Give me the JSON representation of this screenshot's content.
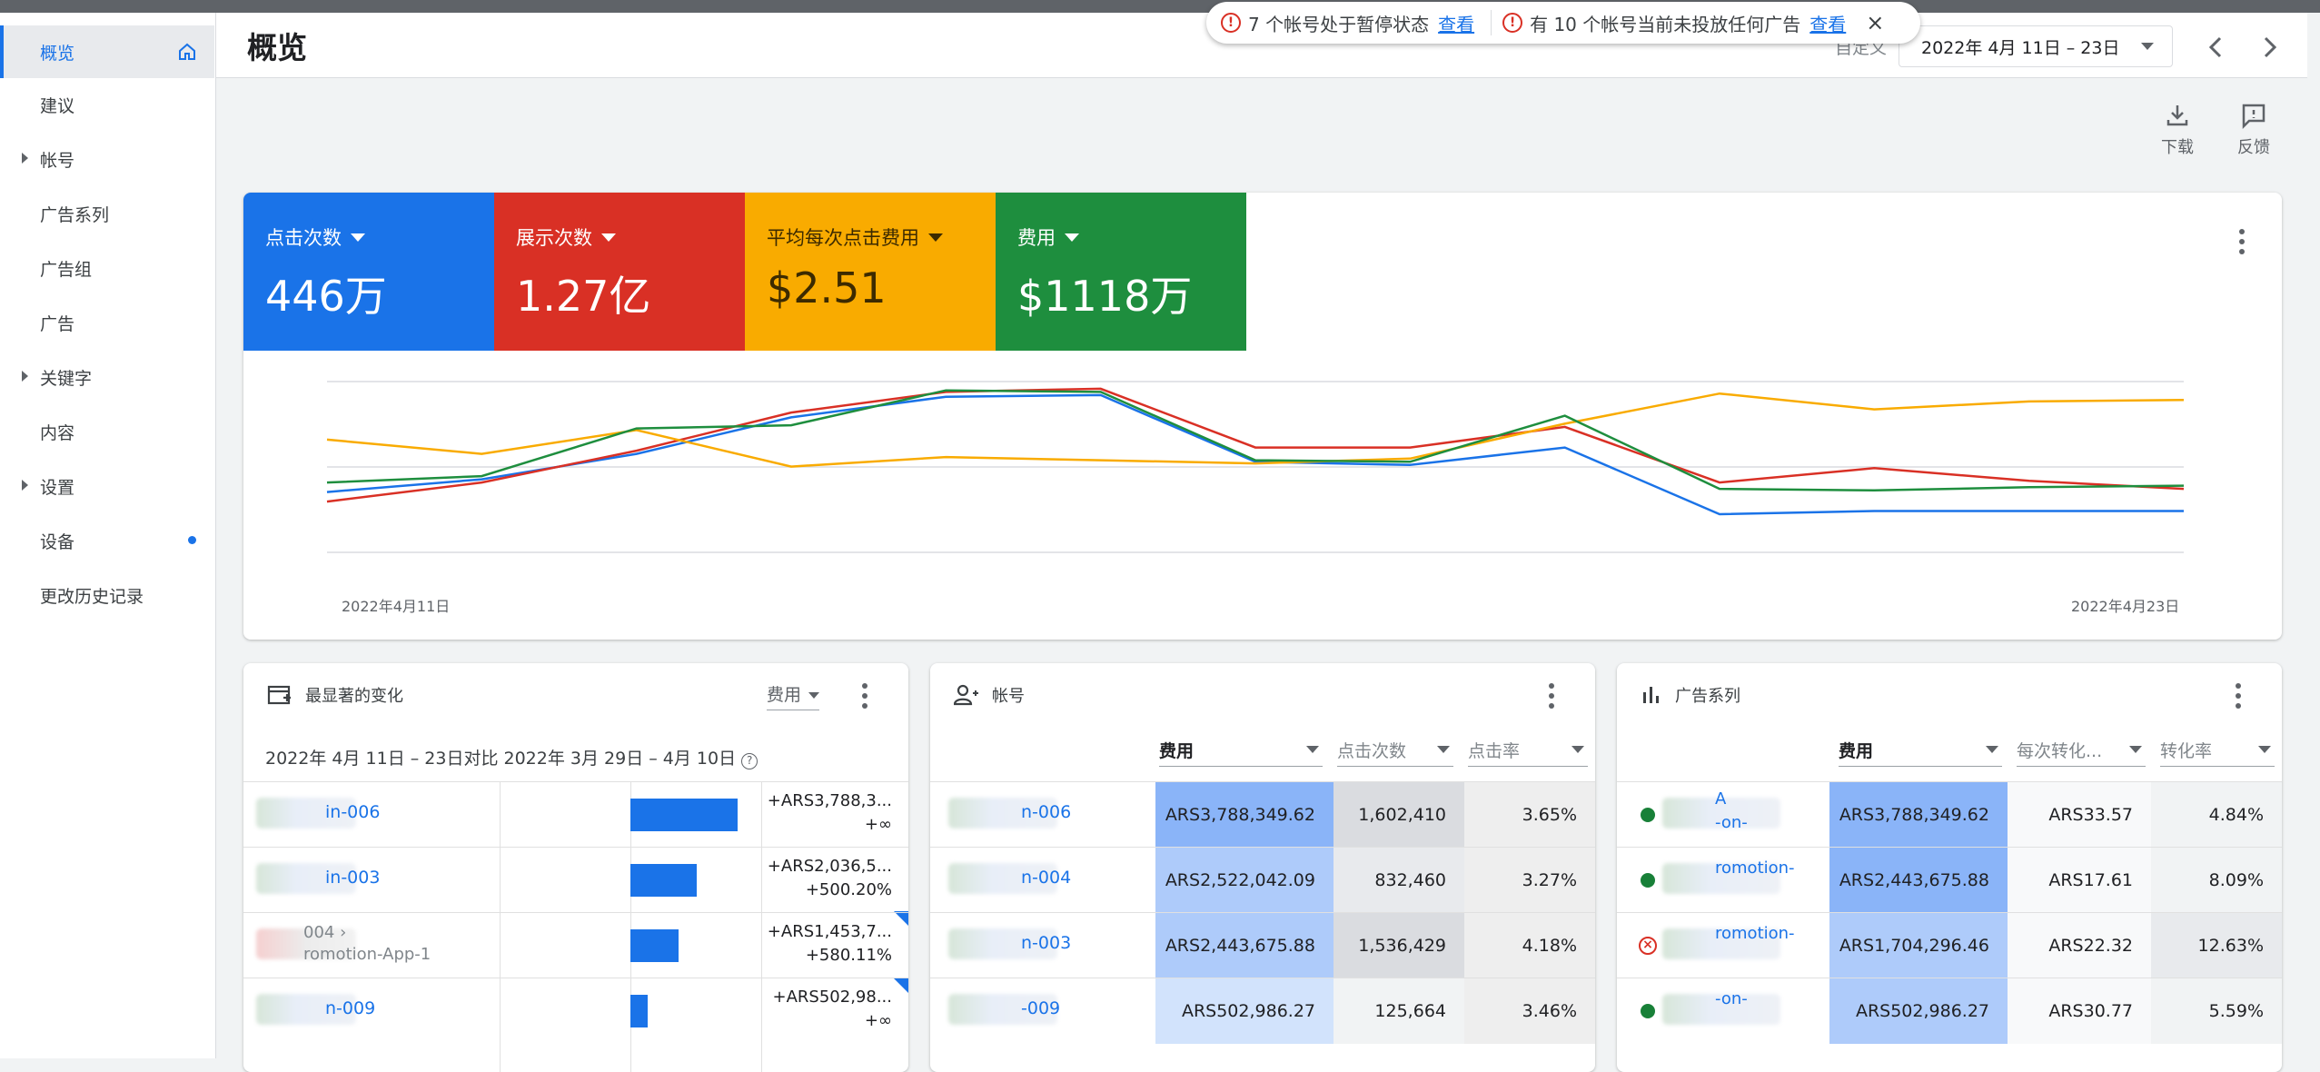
{
  "sidebar": {
    "items": [
      {
        "label": "概览",
        "active": true,
        "arrow": false,
        "home": true
      },
      {
        "label": "建议"
      },
      {
        "label": "帐号",
        "arrow": true
      },
      {
        "label": "广告系列"
      },
      {
        "label": "广告组"
      },
      {
        "label": "广告"
      },
      {
        "label": "关键字",
        "arrow": true
      },
      {
        "label": "内容"
      },
      {
        "label": "设置",
        "arrow": true
      },
      {
        "label": "设备",
        "dot": true
      },
      {
        "label": "更改历史记录"
      }
    ]
  },
  "header": {
    "title": "概览",
    "alerts": {
      "paused": "7 个帐号处于暂停状态",
      "paused_link": "查看",
      "no_ads": "有 10 个帐号当前未投放任何广告",
      "no_ads_link": "查看",
      "close": "×"
    },
    "date_label": "自定义",
    "date_range": "2022年 4月 11日 – 23日"
  },
  "toolbar": {
    "download": "下载",
    "feedback": "反馈"
  },
  "metrics": [
    {
      "label": "点击次数",
      "value": "446万",
      "color": "#1a73e8"
    },
    {
      "label": "展示次数",
      "value": "1.27亿",
      "color": "#d93025"
    },
    {
      "label": "平均每次点击费用",
      "value": "$2.51",
      "color": "#f9ab00"
    },
    {
      "label": "费用",
      "value": "$1118万",
      "color": "#1e8e3e"
    }
  ],
  "chart_data": {
    "type": "line",
    "x_start_label": "2022年4月11日",
    "x_end_label": "2022年4月23日",
    "series": [
      {
        "color": "#1a73e8",
        "values": [
          0.38,
          0.46,
          0.62,
          0.85,
          0.98,
          0.99,
          0.57,
          0.55,
          0.66,
          0.24,
          0.26,
          0.26,
          0.26
        ]
      },
      {
        "color": "#d93025",
        "values": [
          0.32,
          0.44,
          0.64,
          0.88,
          1.01,
          1.03,
          0.66,
          0.66,
          0.79,
          0.44,
          0.53,
          0.45,
          0.4
        ]
      },
      {
        "color": "#f9ab00",
        "values": [
          0.71,
          0.62,
          0.77,
          0.54,
          0.6,
          0.58,
          0.56,
          0.59,
          0.81,
          1.0,
          0.9,
          0.95,
          0.96
        ]
      },
      {
        "color": "#1e8e3e",
        "values": [
          0.44,
          0.48,
          0.78,
          0.8,
          1.02,
          1.01,
          0.58,
          0.57,
          0.86,
          0.4,
          0.39,
          0.41,
          0.42
        ]
      }
    ]
  },
  "changes": {
    "title": "最显著的变化",
    "sort": "费用",
    "compare": "2022年 4月 11日 – 23日对比 2022年 3月 29日 – 4月 10日",
    "rows": [
      {
        "name": "in-006",
        "value": "+ARS3,788,3...",
        "pct": "+∞",
        "bar": 1.0
      },
      {
        "name": "in-003",
        "value": "+ARS2,036,5...",
        "pct": "+500.20%",
        "bar": 0.62
      },
      {
        "name": "004 ›",
        "sub": "romotion-App-1",
        "value": "+ARS1,453,7...",
        "pct": "+580.11%",
        "bar": 0.45,
        "gray": true
      },
      {
        "name": "n-009",
        "value": "+ARS502,98...",
        "pct": "+∞",
        "bar": 0.16
      }
    ]
  },
  "accounts": {
    "title": "帐号",
    "cols": [
      "费用",
      "点击次数",
      "点击率"
    ],
    "rows": [
      {
        "name": "n-006",
        "cost": "ARS3,788,349.62",
        "clicks": "1,602,410",
        "ctr": "3.65%"
      },
      {
        "name": "n-004",
        "cost": "ARS2,522,042.09",
        "clicks": "832,460",
        "ctr": "3.27%"
      },
      {
        "name": "n-003",
        "cost": "ARS2,443,675.88",
        "clicks": "1,536,429",
        "ctr": "4.18%"
      },
      {
        "name": "-009",
        "cost": "ARS502,986.27",
        "clicks": "125,664",
        "ctr": "3.46%"
      }
    ]
  },
  "campaigns": {
    "title": "广告系列",
    "cols": [
      "费用",
      "每次转化...",
      "转化率"
    ],
    "rows": [
      {
        "name": "A",
        "name2": "-on-",
        "cost": "ARS3,788,349.62",
        "cpa": "ARS33.57",
        "rate": "4.84%",
        "status": "green"
      },
      {
        "name": "romotion-",
        "cost": "ARS2,443,675.88",
        "cpa": "ARS17.61",
        "rate": "8.09%",
        "status": "green"
      },
      {
        "name": "romotion-",
        "cost": "ARS1,704,296.46",
        "cpa": "ARS22.32",
        "rate": "12.63%",
        "status": "red"
      },
      {
        "name": "-on-",
        "cost": "ARS502,986.27",
        "cpa": "ARS30.77",
        "rate": "5.59%",
        "status": "green"
      }
    ]
  }
}
